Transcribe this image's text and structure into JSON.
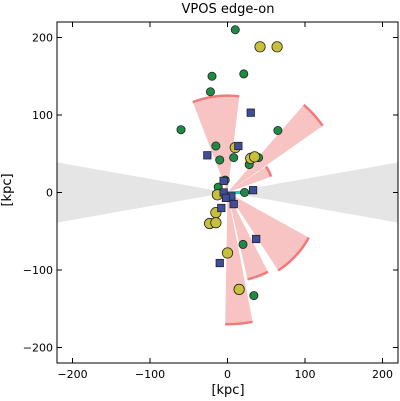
{
  "chart_data": {
    "type": "scatter",
    "title": "VPOS edge-on",
    "xlabel": "[kpc]",
    "ylabel": "[kpc]",
    "xlim": [
      -220,
      220
    ],
    "ylim": [
      -220,
      220
    ],
    "xticks": [
      -200,
      -100,
      0,
      100,
      200
    ],
    "yticks": [
      -200,
      -100,
      0,
      100,
      200
    ],
    "grid": false,
    "colors": {
      "green": "#1f8a43",
      "yellow": "#c8bf3a",
      "blue": "#3f4d9c",
      "pink_fill": "#f7b8b8",
      "pink_edge": "#ef7b7b",
      "zone": "#e5e5e5",
      "disk": "#28c8c8"
    },
    "avoidance_zone": {
      "x_extent": 220,
      "half_angle_deg": 10
    },
    "disk": {
      "x": [
        -20,
        20
      ],
      "y": 0
    },
    "wedges": [
      {
        "direction_deg": 97,
        "r_inner": 0,
        "r_outer": 125,
        "half_width_deg": 14
      },
      {
        "direction_deg": 42,
        "r_inner": 0,
        "r_outer": 150,
        "half_width_deg": 7
      },
      {
        "direction_deg": -43,
        "r_inner": 0,
        "r_outer": 120,
        "half_width_deg": 14
      },
      {
        "direction_deg": -70,
        "r_inner": 0,
        "r_outer": 115,
        "half_width_deg": 7
      },
      {
        "direction_deg": -85,
        "r_inner": 0,
        "r_outer": 170,
        "half_width_deg": 6
      },
      {
        "direction_deg": 27,
        "r_inner": 0,
        "r_outer": 60,
        "half_width_deg": 7
      }
    ],
    "series": [
      {
        "marker": "circle",
        "color": "green",
        "points": [
          [
            10,
            210
          ],
          [
            -20,
            150
          ],
          [
            21,
            153
          ],
          [
            -22,
            130
          ],
          [
            -60,
            81
          ],
          [
            65,
            80
          ],
          [
            -15,
            60
          ],
          [
            8,
            45
          ],
          [
            -10,
            42
          ],
          [
            28,
            36
          ],
          [
            40,
            45
          ],
          [
            -12,
            7
          ],
          [
            -3,
            16
          ],
          [
            22,
            0
          ],
          [
            20,
            -67
          ],
          [
            34,
            -133
          ]
        ]
      },
      {
        "marker": "circle",
        "color": "yellow",
        "points": [
          [
            42,
            188
          ],
          [
            64,
            188
          ],
          [
            10,
            58
          ],
          [
            30,
            44
          ],
          [
            35,
            46
          ],
          [
            -13,
            -3
          ],
          [
            -15,
            -26
          ],
          [
            -23,
            -40
          ],
          [
            -15,
            -39
          ],
          [
            0,
            -78
          ],
          [
            15,
            -125
          ]
        ]
      },
      {
        "marker": "square",
        "color": "blue",
        "points": [
          [
            30,
            103
          ],
          [
            -26,
            48
          ],
          [
            14,
            60
          ],
          [
            -5,
            15
          ],
          [
            -5,
            0
          ],
          [
            5,
            -5
          ],
          [
            33,
            3
          ],
          [
            -2,
            -7
          ],
          [
            8,
            -15
          ],
          [
            37,
            -60
          ],
          [
            -10,
            -91
          ],
          [
            -8,
            -20
          ]
        ]
      }
    ]
  }
}
